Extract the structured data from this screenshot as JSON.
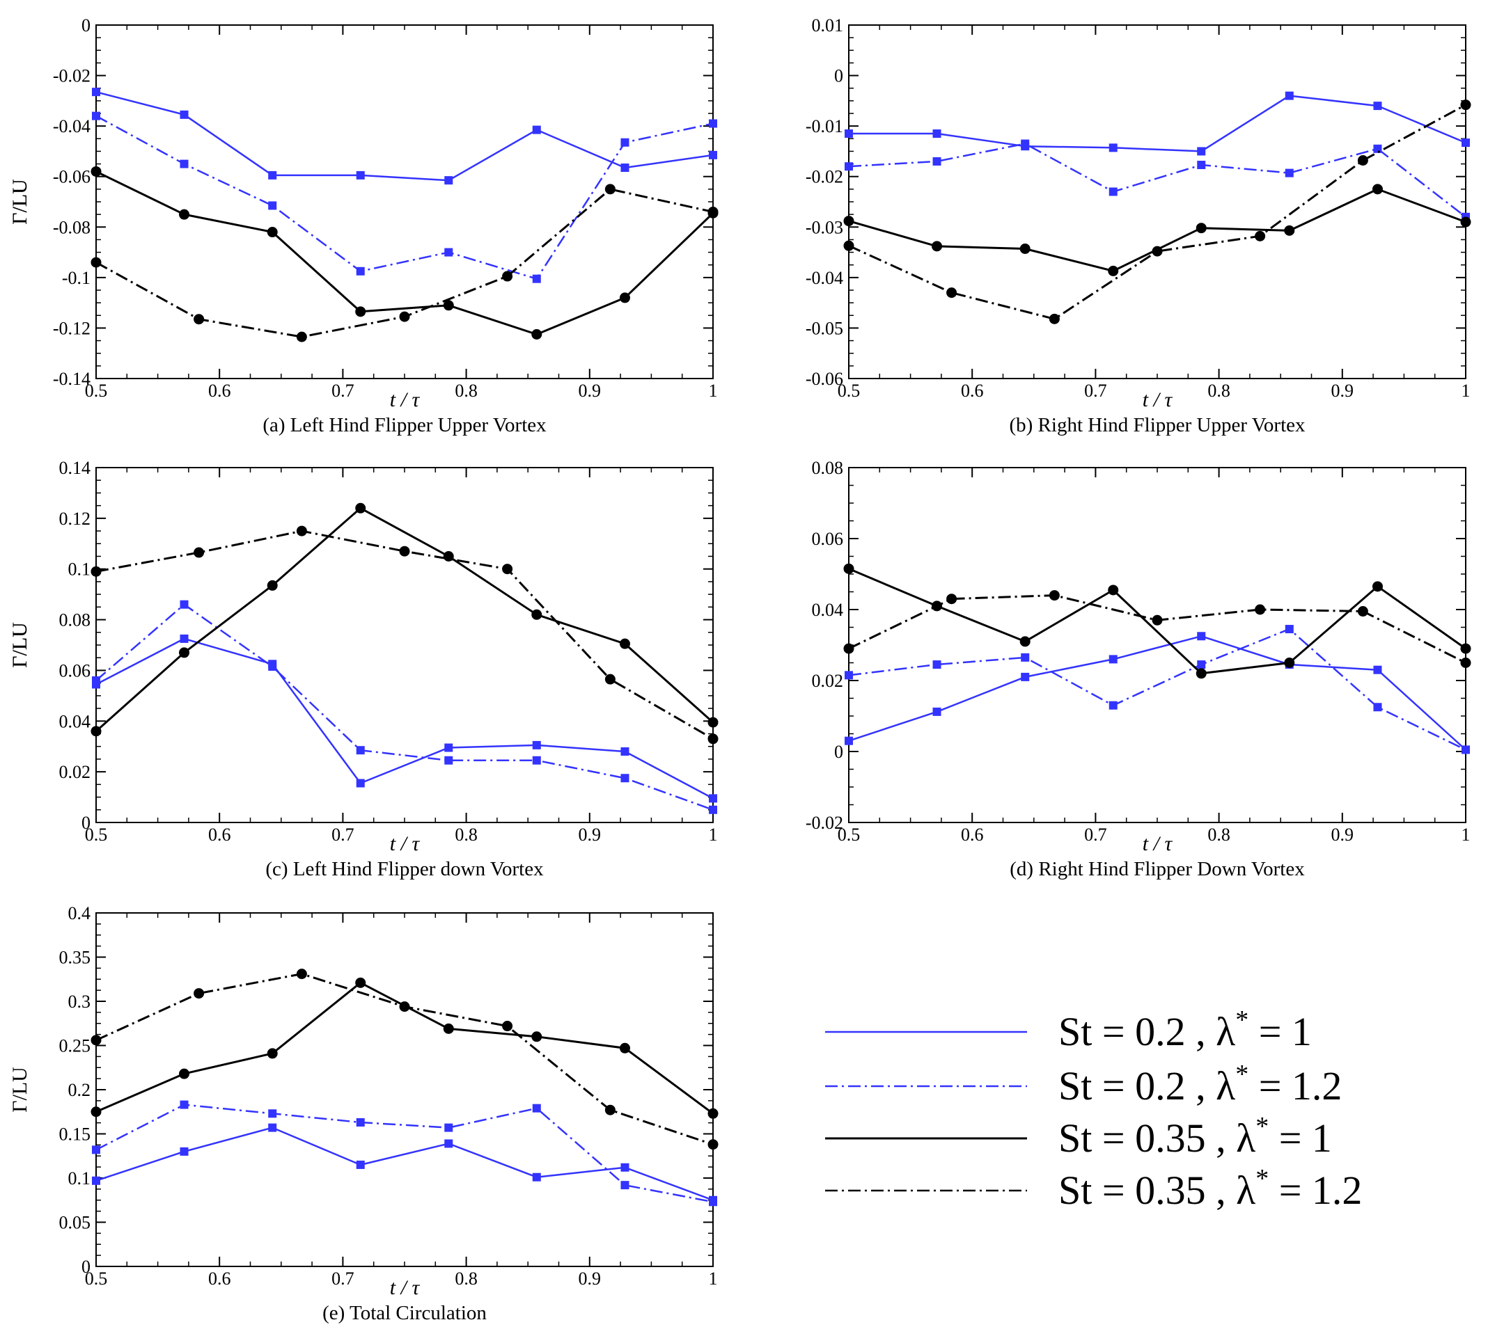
{
  "figure": {
    "x_axis_label": "t / τ",
    "y_axis_label": "Γ/LU"
  },
  "colors": {
    "blue": "#3333ff",
    "black": "#000000"
  },
  "legend": [
    {
      "st": "St = 0.2 , λ",
      "sup": "*",
      "eq": " = 1",
      "color": "#3333ff",
      "dash": "solid"
    },
    {
      "st": "St = 0.2 , λ",
      "sup": "*",
      "eq": " = 1.2",
      "color": "#3333ff",
      "dash": "dashdot"
    },
    {
      "st": "St = 0.35 , λ",
      "sup": "*",
      "eq": " = 1",
      "color": "#000000",
      "dash": "solid"
    },
    {
      "st": "St = 0.35 , λ",
      "sup": "*",
      "eq": " = 1.2",
      "color": "#000000",
      "dash": "dashdot"
    }
  ],
  "chart_data": [
    {
      "type": "line",
      "title": "(a) Left Hind Flipper Upper Vortex",
      "xlabel": "t / τ",
      "ylabel": "Γ/LU",
      "xlim": [
        0.5,
        1
      ],
      "ylim": [
        -0.14,
        0
      ],
      "xticks": [
        "0.5",
        "0.6",
        "0.7",
        "0.8",
        "0.9",
        "1"
      ],
      "yticks": [
        "-0.14",
        "-0.12",
        "-0.1",
        "-0.08",
        "-0.06",
        "-0.04",
        "-0.02",
        "0"
      ],
      "series": [
        {
          "name": "St = 0.2 , λ* = 1",
          "color": "#3333ff",
          "dash": "solid",
          "marker": "square",
          "x": [
            0.5,
            0.5714,
            0.6429,
            0.7143,
            0.7857,
            0.8571,
            0.9286,
            1.0
          ],
          "y": [
            -0.0265,
            -0.0355,
            -0.0595,
            -0.0595,
            -0.0615,
            -0.0415,
            -0.0565,
            -0.0515
          ]
        },
        {
          "name": "St = 0.2 , λ* = 1.2",
          "color": "#3333ff",
          "dash": "dashdot",
          "marker": "square",
          "x": [
            0.5,
            0.5714,
            0.6429,
            0.7143,
            0.7857,
            0.8571,
            0.9286,
            1.0
          ],
          "y": [
            -0.036,
            -0.055,
            -0.0715,
            -0.0975,
            -0.09,
            -0.1005,
            -0.0465,
            -0.039
          ]
        },
        {
          "name": "St = 0.35 , λ* = 1",
          "color": "#000000",
          "dash": "solid",
          "marker": "circle",
          "x": [
            0.5,
            0.5714,
            0.6429,
            0.7143,
            0.7857,
            0.8571,
            0.9286,
            1.0
          ],
          "y": [
            -0.058,
            -0.075,
            -0.082,
            -0.1135,
            -0.111,
            -0.1225,
            -0.108,
            -0.0745
          ]
        },
        {
          "name": "St = 0.35 , λ* = 1.2",
          "color": "#000000",
          "dash": "dashdot",
          "marker": "circle",
          "x": [
            0.5,
            0.5833,
            0.6667,
            0.75,
            0.8333,
            0.9167,
            1.0
          ],
          "y": [
            -0.094,
            -0.1165,
            -0.1235,
            -0.1155,
            -0.0995,
            -0.065,
            -0.074
          ]
        }
      ]
    },
    {
      "type": "line",
      "title": "(b) Right Hind Flipper Upper Vortex",
      "xlabel": "t / τ",
      "ylabel": "Γ/LU",
      "xlim": [
        0.5,
        1
      ],
      "ylim": [
        -0.06,
        0.01
      ],
      "xticks": [
        "0.5",
        "0.6",
        "0.7",
        "0.8",
        "0.9",
        "1"
      ],
      "yticks": [
        "-0.06",
        "-0.05",
        "-0.04",
        "-0.03",
        "-0.02",
        "-0.01",
        "0",
        "0.01"
      ],
      "series": [
        {
          "name": "St = 0.2 , λ* = 1",
          "color": "#3333ff",
          "dash": "solid",
          "marker": "square",
          "x": [
            0.5,
            0.5714,
            0.6429,
            0.7143,
            0.7857,
            0.8571,
            0.9286,
            1.0
          ],
          "y": [
            -0.0115,
            -0.0115,
            -0.014,
            -0.0143,
            -0.015,
            -0.004,
            -0.006,
            -0.0133
          ]
        },
        {
          "name": "St = 0.2 , λ* = 1.2",
          "color": "#3333ff",
          "dash": "dashdot",
          "marker": "square",
          "x": [
            0.5,
            0.5714,
            0.6429,
            0.7143,
            0.7857,
            0.8571,
            0.9286,
            1.0
          ],
          "y": [
            -0.018,
            -0.017,
            -0.0135,
            -0.023,
            -0.0177,
            -0.0193,
            -0.0145,
            -0.028
          ]
        },
        {
          "name": "St = 0.35 , λ* = 1",
          "color": "#000000",
          "dash": "solid",
          "marker": "circle",
          "x": [
            0.5,
            0.5714,
            0.6429,
            0.7143,
            0.7857,
            0.8571,
            0.9286,
            1.0
          ],
          "y": [
            -0.0288,
            -0.0338,
            -0.0343,
            -0.0387,
            -0.0302,
            -0.0307,
            -0.0225,
            -0.029
          ]
        },
        {
          "name": "St = 0.35 , λ* = 1.2",
          "color": "#000000",
          "dash": "dashdot",
          "marker": "circle",
          "x": [
            0.5,
            0.5833,
            0.6667,
            0.75,
            0.8333,
            0.9167,
            1.0
          ],
          "y": [
            -0.0337,
            -0.043,
            -0.0482,
            -0.0348,
            -0.0318,
            -0.0168,
            -0.0058
          ]
        }
      ]
    },
    {
      "type": "line",
      "title": "(c) Left Hind Flipper down Vortex",
      "xlabel": "t / τ",
      "ylabel": "Γ/LU",
      "xlim": [
        0.5,
        1
      ],
      "ylim": [
        0,
        0.14
      ],
      "xticks": [
        "0.5",
        "0.6",
        "0.7",
        "0.8",
        "0.9",
        "1"
      ],
      "yticks": [
        "0",
        "0.02",
        "0.04",
        "0.06",
        "0.08",
        "0.1",
        "0.12",
        "0.14"
      ],
      "series": [
        {
          "name": "St = 0.2 , λ* = 1",
          "color": "#3333ff",
          "dash": "solid",
          "marker": "square",
          "x": [
            0.5,
            0.5714,
            0.6429,
            0.7143,
            0.7857,
            0.8571,
            0.9286,
            1.0
          ],
          "y": [
            0.0545,
            0.0725,
            0.0625,
            0.0155,
            0.0295,
            0.0305,
            0.028,
            0.0095
          ]
        },
        {
          "name": "St = 0.2 , λ* = 1.2",
          "color": "#3333ff",
          "dash": "dashdot",
          "marker": "square",
          "x": [
            0.5,
            0.5714,
            0.6429,
            0.7143,
            0.7857,
            0.8571,
            0.9286,
            1.0
          ],
          "y": [
            0.056,
            0.086,
            0.0615,
            0.0285,
            0.0245,
            0.0245,
            0.0175,
            0.005
          ]
        },
        {
          "name": "St = 0.35 , λ* = 1",
          "color": "#000000",
          "dash": "solid",
          "marker": "circle",
          "x": [
            0.5,
            0.5714,
            0.6429,
            0.7143,
            0.7857,
            0.8571,
            0.9286,
            1.0
          ],
          "y": [
            0.036,
            0.067,
            0.0935,
            0.124,
            0.105,
            0.082,
            0.0705,
            0.0395
          ]
        },
        {
          "name": "St = 0.35 , λ* = 1.2",
          "color": "#000000",
          "dash": "dashdot",
          "marker": "circle",
          "x": [
            0.5,
            0.5833,
            0.6667,
            0.75,
            0.8333,
            0.9167,
            1.0
          ],
          "y": [
            0.099,
            0.1065,
            0.115,
            0.107,
            0.1,
            0.0565,
            0.033
          ]
        }
      ]
    },
    {
      "type": "line",
      "title": "(d) Right Hind Flipper Down Vortex",
      "xlabel": "t / τ",
      "ylabel": "Γ/LU",
      "xlim": [
        0.5,
        1
      ],
      "ylim": [
        -0.02,
        0.08
      ],
      "xticks": [
        "0.5",
        "0.6",
        "0.7",
        "0.8",
        "0.9",
        "1"
      ],
      "yticks": [
        "-0.02",
        "0",
        "0.02",
        "0.04",
        "0.06",
        "0.08"
      ],
      "series": [
        {
          "name": "St = 0.2 , λ* = 1",
          "color": "#3333ff",
          "dash": "solid",
          "marker": "square",
          "x": [
            0.5,
            0.5714,
            0.6429,
            0.7143,
            0.7857,
            0.8571,
            0.9286,
            1.0
          ],
          "y": [
            0.003,
            0.0112,
            0.021,
            0.026,
            0.0325,
            0.0245,
            0.023,
            0.0005
          ]
        },
        {
          "name": "St = 0.2 , λ* = 1.2",
          "color": "#3333ff",
          "dash": "dashdot",
          "marker": "square",
          "x": [
            0.5,
            0.5714,
            0.6429,
            0.7143,
            0.7857,
            0.8571,
            0.9286,
            1.0
          ],
          "y": [
            0.0215,
            0.0245,
            0.0265,
            0.013,
            0.0245,
            0.0345,
            0.0125,
            0.0005
          ]
        },
        {
          "name": "St = 0.35 , λ* = 1",
          "color": "#000000",
          "dash": "solid",
          "marker": "circle",
          "x": [
            0.5,
            0.5714,
            0.6429,
            0.7143,
            0.7857,
            0.8571,
            0.9286,
            1.0
          ],
          "y": [
            0.0515,
            0.041,
            0.031,
            0.0455,
            0.022,
            0.025,
            0.0465,
            0.029
          ]
        },
        {
          "name": "St = 0.35 , λ* = 1.2",
          "color": "#000000",
          "dash": "dashdot",
          "marker": "circle",
          "x": [
            0.5,
            0.5833,
            0.6667,
            0.75,
            0.8333,
            0.9167,
            1.0
          ],
          "y": [
            0.029,
            0.043,
            0.044,
            0.037,
            0.04,
            0.0395,
            0.025
          ]
        }
      ]
    },
    {
      "type": "line",
      "title": "(e) Total Circulation",
      "xlabel": "t / τ",
      "ylabel": "Γ/LU",
      "xlim": [
        0.5,
        1
      ],
      "ylim": [
        0,
        0.4
      ],
      "xticks": [
        "0.5",
        "0.6",
        "0.7",
        "0.8",
        "0.9",
        "1"
      ],
      "yticks": [
        "0",
        "0.05",
        "0.1",
        "0.15",
        "0.2",
        "0.25",
        "0.3",
        "0.35",
        "0.4"
      ],
      "series": [
        {
          "name": "St = 0.2 , λ* = 1",
          "color": "#3333ff",
          "dash": "solid",
          "marker": "square",
          "x": [
            0.5,
            0.5714,
            0.6429,
            0.7143,
            0.7857,
            0.8571,
            0.9286,
            1.0
          ],
          "y": [
            0.097,
            0.13,
            0.157,
            0.115,
            0.139,
            0.101,
            0.112,
            0.075
          ]
        },
        {
          "name": "St = 0.2 , λ* = 1.2",
          "color": "#3333ff",
          "dash": "dashdot",
          "marker": "square",
          "x": [
            0.5,
            0.5714,
            0.6429,
            0.7143,
            0.7857,
            0.8571,
            0.9286,
            1.0
          ],
          "y": [
            0.132,
            0.183,
            0.173,
            0.163,
            0.157,
            0.179,
            0.092,
            0.073
          ]
        },
        {
          "name": "St = 0.35 , λ* = 1",
          "color": "#000000",
          "dash": "solid",
          "marker": "circle",
          "x": [
            0.5,
            0.5714,
            0.6429,
            0.7143,
            0.7857,
            0.8571,
            0.9286,
            1.0
          ],
          "y": [
            0.175,
            0.218,
            0.241,
            0.321,
            0.269,
            0.26,
            0.247,
            0.173
          ]
        },
        {
          "name": "St = 0.35 , λ* = 1.2",
          "color": "#000000",
          "dash": "dashdot",
          "marker": "circle",
          "x": [
            0.5,
            0.5833,
            0.6667,
            0.75,
            0.8333,
            0.9167,
            1.0
          ],
          "y": [
            0.256,
            0.309,
            0.331,
            0.294,
            0.272,
            0.177,
            0.138
          ]
        }
      ]
    }
  ]
}
